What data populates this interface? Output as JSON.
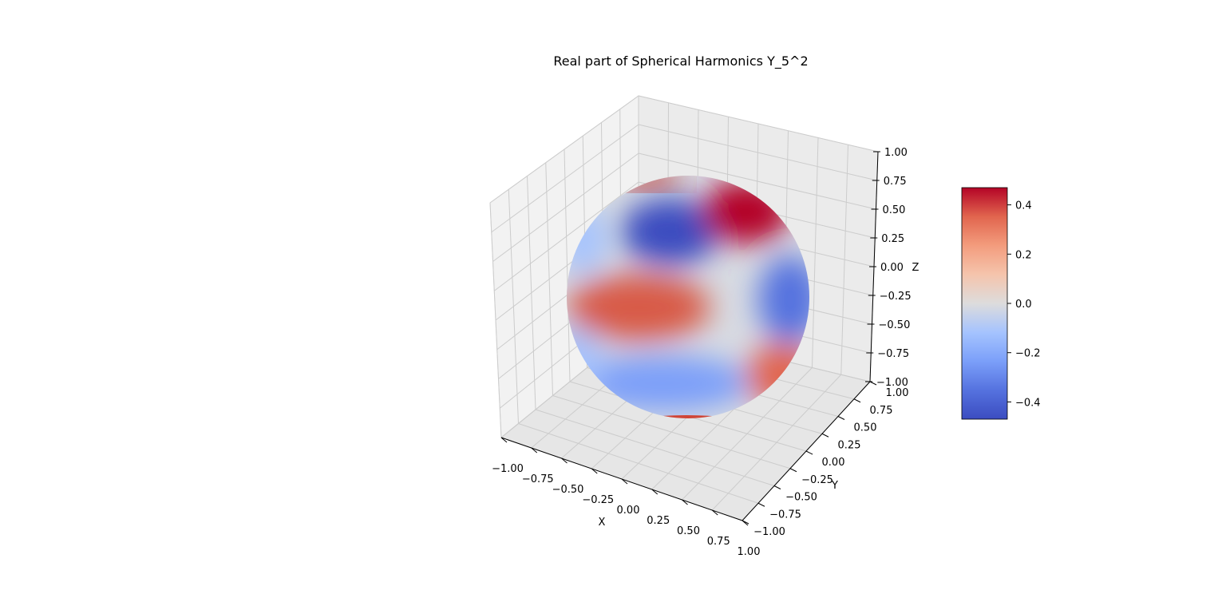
{
  "chart_data": {
    "type": "surface",
    "title": "Real part of Spherical Harmonics Y_5^2",
    "surface": {
      "shape": "unit sphere",
      "function": "Re(Y_5^2)",
      "colormap": "coolwarm",
      "value_range": [
        -0.47,
        0.47
      ]
    },
    "x_axis": {
      "label": "X",
      "range": [
        -1.0,
        1.0
      ],
      "ticks": [
        "−1.00",
        "−0.75",
        "−0.50",
        "−0.25",
        "0.00",
        "0.25",
        "0.50",
        "0.75",
        "1.00"
      ]
    },
    "y_axis": {
      "label": "Y",
      "range": [
        -1.0,
        1.0
      ],
      "ticks": [
        "−1.00",
        "−0.75",
        "−0.50",
        "−0.25",
        "0.00",
        "0.25",
        "0.50",
        "0.75",
        "1.00"
      ]
    },
    "z_axis": {
      "label": "Z",
      "range": [
        -1.0,
        1.0
      ],
      "ticks": [
        "−1.00",
        "−0.75",
        "−0.50",
        "−0.25",
        "0.00",
        "0.25",
        "0.50",
        "0.75",
        "1.00"
      ]
    },
    "colorbar": {
      "ticks": [
        "−0.4",
        "−0.2",
        "0.0",
        "0.2",
        "0.4"
      ],
      "tick_values": [
        -0.4,
        -0.2,
        0.0,
        0.2,
        0.4
      ]
    },
    "grid": true
  }
}
